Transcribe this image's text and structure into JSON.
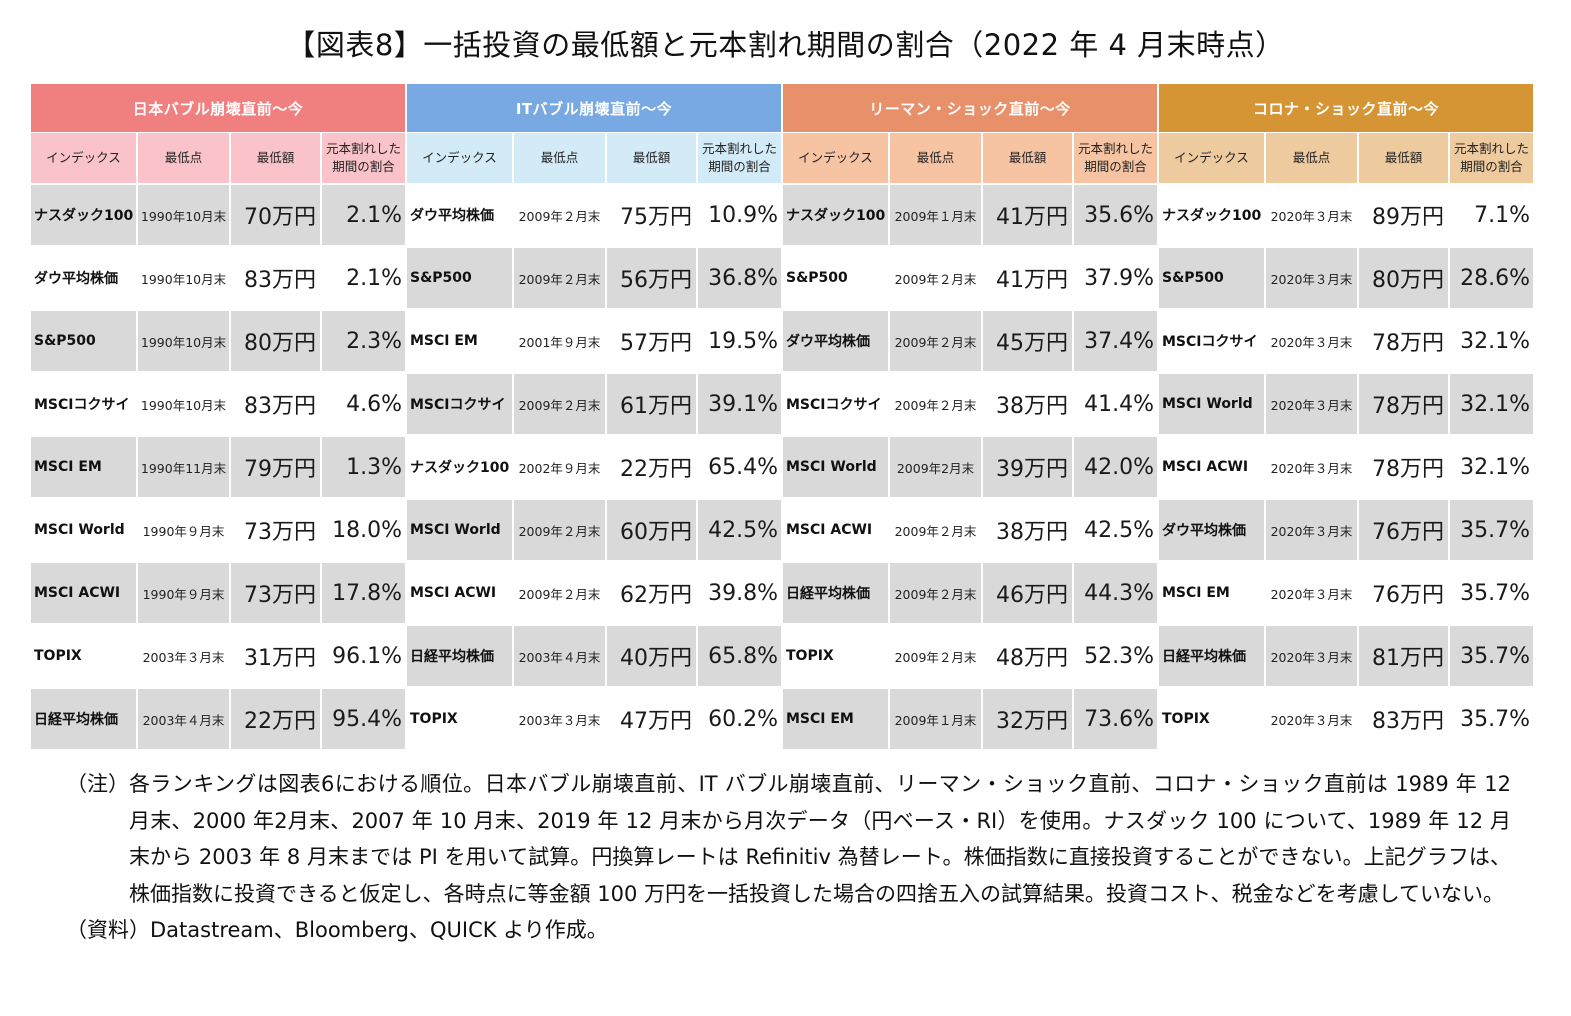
{
  "title": "【図表8】一括投資の最低額と元本割れ期間の割合（2022 年 4 月末時点）",
  "column_headers": [
    "インデックス",
    "最低点",
    "最低額",
    "元本割れした期間の割合"
  ],
  "column_headers_display": {
    "index": "インデックス",
    "low_point": "最低点",
    "min_amount": "最低額",
    "loss_ratio_line1": "元本割れした",
    "loss_ratio_line2": "期間の割合"
  },
  "groups": [
    {
      "label": "日本バブル崩壊直前～今",
      "header_color": "#f08080",
      "subheader_color": "#f9c3c9",
      "rows": [
        {
          "index": "ナスダック100",
          "low_point": "1990年10月末",
          "min_amount": "70万円",
          "loss_ratio": "2.1%"
        },
        {
          "index": "ダウ平均株価",
          "low_point": "1990年10月末",
          "min_amount": "83万円",
          "loss_ratio": "2.1%"
        },
        {
          "index": "S&P500",
          "low_point": "1990年10月末",
          "min_amount": "80万円",
          "loss_ratio": "2.3%"
        },
        {
          "index": "MSCIコクサイ",
          "low_point": "1990年10月末",
          "min_amount": "83万円",
          "loss_ratio": "4.6%"
        },
        {
          "index": "MSCI EM",
          "low_point": "1990年11月末",
          "min_amount": "79万円",
          "loss_ratio": "1.3%"
        },
        {
          "index": "MSCI World",
          "low_point": "1990年９月末",
          "min_amount": "73万円",
          "loss_ratio": "18.0%"
        },
        {
          "index": "MSCI ACWI",
          "low_point": "1990年９月末",
          "min_amount": "73万円",
          "loss_ratio": "17.8%"
        },
        {
          "index": "TOPIX",
          "low_point": "2003年３月末",
          "min_amount": "31万円",
          "loss_ratio": "96.1%"
        },
        {
          "index": "日経平均株価",
          "low_point": "2003年４月末",
          "min_amount": "22万円",
          "loss_ratio": "95.4%"
        }
      ]
    },
    {
      "label": "ITバブル崩壊直前～今",
      "header_color": "#78a9e2",
      "subheader_color": "#d3eaf7",
      "rows": [
        {
          "index": "ダウ平均株価",
          "low_point": "2009年２月末",
          "min_amount": "75万円",
          "loss_ratio": "10.9%"
        },
        {
          "index": "S&P500",
          "low_point": "2009年２月末",
          "min_amount": "56万円",
          "loss_ratio": "36.8%"
        },
        {
          "index": "MSCI EM",
          "low_point": "2001年９月末",
          "min_amount": "57万円",
          "loss_ratio": "19.5%"
        },
        {
          "index": "MSCIコクサイ",
          "low_point": "2009年２月末",
          "min_amount": "61万円",
          "loss_ratio": "39.1%"
        },
        {
          "index": "ナスダック100",
          "low_point": "2002年９月末",
          "min_amount": "22万円",
          "loss_ratio": "65.4%"
        },
        {
          "index": "MSCI World",
          "low_point": "2009年２月末",
          "min_amount": "60万円",
          "loss_ratio": "42.5%"
        },
        {
          "index": "MSCI ACWI",
          "low_point": "2009年２月末",
          "min_amount": "62万円",
          "loss_ratio": "39.8%"
        },
        {
          "index": "日経平均株価",
          "low_point": "2003年４月末",
          "min_amount": "40万円",
          "loss_ratio": "65.8%"
        },
        {
          "index": "TOPIX",
          "low_point": "2003年３月末",
          "min_amount": "47万円",
          "loss_ratio": "60.2%"
        }
      ]
    },
    {
      "label": "リーマン・ショック直前～今",
      "header_color": "#e8906a",
      "subheader_color": "#f6c4a3",
      "rows": [
        {
          "index": "ナスダック100",
          "low_point": "2009年１月末",
          "min_amount": "41万円",
          "loss_ratio": "35.6%"
        },
        {
          "index": "S&P500",
          "low_point": "2009年２月末",
          "min_amount": "41万円",
          "loss_ratio": "37.9%"
        },
        {
          "index": "ダウ平均株価",
          "low_point": "2009年２月末",
          "min_amount": "45万円",
          "loss_ratio": "37.4%"
        },
        {
          "index": "MSCIコクサイ",
          "low_point": "2009年２月末",
          "min_amount": "38万円",
          "loss_ratio": "41.4%"
        },
        {
          "index": "MSCI World",
          "low_point": "2009年2月末",
          "min_amount": "39万円",
          "loss_ratio": "42.0%"
        },
        {
          "index": "MSCI ACWI",
          "low_point": "2009年２月末",
          "min_amount": "38万円",
          "loss_ratio": "42.5%"
        },
        {
          "index": "日経平均株価",
          "low_point": "2009年２月末",
          "min_amount": "46万円",
          "loss_ratio": "44.3%"
        },
        {
          "index": "TOPIX",
          "low_point": "2009年２月末",
          "min_amount": "48万円",
          "loss_ratio": "52.3%"
        },
        {
          "index": "MSCI EM",
          "low_point": "2009年１月末",
          "min_amount": "32万円",
          "loss_ratio": "73.6%"
        }
      ]
    },
    {
      "label": "コロナ・ショック直前～今",
      "header_color": "#d59535",
      "subheader_color": "#eeca9f",
      "rows": [
        {
          "index": "ナスダック100",
          "low_point": "2020年３月末",
          "min_amount": "89万円",
          "loss_ratio": "7.1%"
        },
        {
          "index": "S&P500",
          "low_point": "2020年３月末",
          "min_amount": "80万円",
          "loss_ratio": "28.6%"
        },
        {
          "index": "MSCIコクサイ",
          "low_point": "2020年３月末",
          "min_amount": "78万円",
          "loss_ratio": "32.1%"
        },
        {
          "index": "MSCI World",
          "low_point": "2020年３月末",
          "min_amount": "78万円",
          "loss_ratio": "32.1%"
        },
        {
          "index": "MSCI ACWI",
          "low_point": "2020年３月末",
          "min_amount": "78万円",
          "loss_ratio": "32.1%"
        },
        {
          "index": "ダウ平均株価",
          "low_point": "2020年３月末",
          "min_amount": "76万円",
          "loss_ratio": "35.7%"
        },
        {
          "index": "MSCI EM",
          "low_point": "2020年３月末",
          "min_amount": "76万円",
          "loss_ratio": "35.7%"
        },
        {
          "index": "日経平均株価",
          "low_point": "2020年３月末",
          "min_amount": "81万円",
          "loss_ratio": "35.7%"
        },
        {
          "index": "TOPIX",
          "low_point": "2020年３月末",
          "min_amount": "83万円",
          "loss_ratio": "35.7%"
        }
      ]
    }
  ],
  "row_shade_color": "#d9d9d9",
  "notes": {
    "note_label": "（注）",
    "note_text": "各ランキングは図表6における順位。日本バブル崩壊直前、IT バブル崩壊直前、リーマン・ショック直前、コロナ・ショック直前は 1989 年 12 月末、2000 年2月末、2007 年 10 月末、2019 年 12 月末から月次データ（円ベース・RI）を使用。ナスダック 100 について、1989 年 12 月末から 2003 年 8 月末までは PI を用いて試算。円換算レートは Refinitiv 為替レート。株価指数に直接投資することができない。上記グラフは、株価指数に投資できると仮定し、各時点に等金額 100 万円を一括投資した場合の四捨五入の試算結果。投資コスト、税金などを考慮していない。",
    "source_label": "（資料）",
    "source_text": "Datastream、Bloomberg、QUICK より作成。"
  }
}
